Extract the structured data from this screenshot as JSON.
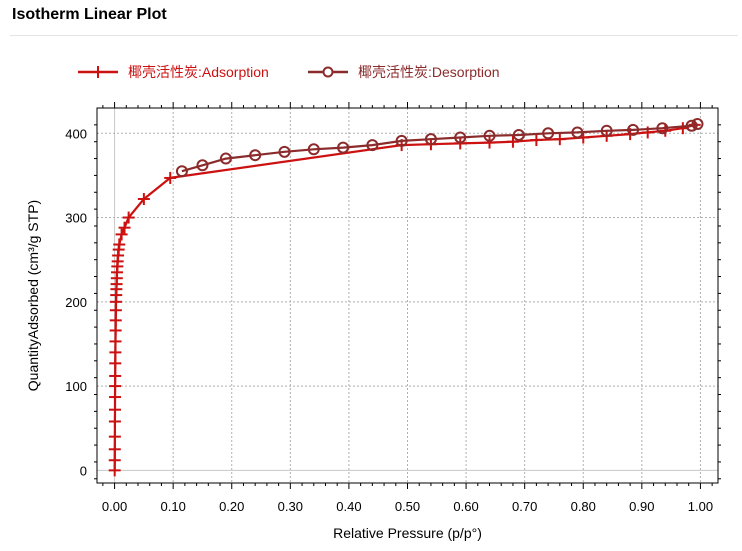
{
  "panel": {
    "title": "Isotherm Linear Plot"
  },
  "colors": {
    "adsorption": "#cc1111",
    "desorption": "#8b2b2b"
  },
  "chart_data": {
    "type": "line",
    "xlabel": "Relative Pressure (p/p°)",
    "ylabel": "QuantityAdsorbed (cm³/g STP)",
    "xlim": [
      -0.03,
      1.03
    ],
    "ylim": [
      -15,
      430
    ],
    "xticks": [
      0.0,
      0.1,
      0.2,
      0.3,
      0.4,
      0.5,
      0.6,
      0.7,
      0.8,
      0.9,
      1.0
    ],
    "xtick_labels": [
      "0.00",
      "0.10",
      "0.20",
      "0.30",
      "0.40",
      "0.50",
      "0.60",
      "0.70",
      "0.80",
      "0.90",
      "1.00"
    ],
    "yticks": [
      0,
      100,
      200,
      300,
      400
    ],
    "ytick_labels": [
      "0",
      "100",
      "200",
      "300",
      "400"
    ],
    "grid": true,
    "legend_position": "top-left",
    "series": [
      {
        "name": "椰壳活性炭:Adsorption",
        "marker": "plus",
        "x": [
          0.0002,
          0.0003,
          0.0004,
          0.0005,
          0.0006,
          0.0007,
          0.0008,
          0.0009,
          0.001,
          0.0012,
          0.0014,
          0.0016,
          0.0018,
          0.002,
          0.0022,
          0.0025,
          0.0028,
          0.0031,
          0.0034,
          0.0038,
          0.0042,
          0.0047,
          0.0053,
          0.006,
          0.007,
          0.008,
          0.012,
          0.017,
          0.024,
          0.05,
          0.095,
          0.49,
          0.54,
          0.59,
          0.64,
          0.68,
          0.72,
          0.76,
          0.8,
          0.84,
          0.88,
          0.91,
          0.94,
          0.97,
          0.99
        ],
        "y": [
          0,
          12,
          25,
          40,
          58,
          72,
          87,
          100,
          112,
          127,
          140,
          153,
          166,
          178,
          190,
          200,
          208,
          215,
          221,
          228,
          235,
          242,
          248,
          255,
          262,
          268,
          280,
          288,
          300,
          322,
          347,
          386,
          387,
          388,
          389,
          390,
          392,
          393,
          395,
          397,
          399,
          401,
          403,
          406,
          410
        ]
      },
      {
        "name": "椰壳活性炭:Desorption",
        "marker": "circle",
        "x": [
          0.995,
          0.985,
          0.935,
          0.885,
          0.84,
          0.79,
          0.74,
          0.69,
          0.64,
          0.59,
          0.54,
          0.49,
          0.44,
          0.39,
          0.34,
          0.29,
          0.24,
          0.19,
          0.15,
          0.115
        ],
        "y": [
          411,
          409,
          406,
          404,
          403,
          401,
          400,
          398,
          397,
          395,
          393,
          391,
          386,
          383,
          381,
          378,
          374,
          370,
          362,
          355
        ]
      }
    ]
  }
}
